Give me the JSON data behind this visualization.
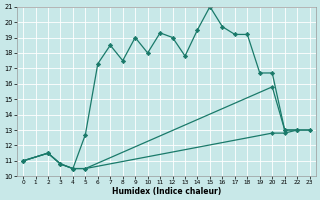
{
  "xlabel": "Humidex (Indice chaleur)",
  "bg_color": "#c8e8e8",
  "line_color": "#1a7a6a",
  "xlim": [
    -0.5,
    23.5
  ],
  "ylim": [
    10,
    21
  ],
  "xticks": [
    0,
    1,
    2,
    3,
    4,
    5,
    6,
    7,
    8,
    9,
    10,
    11,
    12,
    13,
    14,
    15,
    16,
    17,
    18,
    19,
    20,
    21,
    22,
    23
  ],
  "yticks": [
    10,
    11,
    12,
    13,
    14,
    15,
    16,
    17,
    18,
    19,
    20,
    21
  ],
  "line1_x": [
    0,
    2,
    3,
    4,
    5,
    6,
    7,
    8,
    9,
    10,
    11,
    12,
    13,
    14,
    15,
    16,
    17,
    18,
    19,
    20,
    21,
    22
  ],
  "line1_y": [
    11,
    11.5,
    10.8,
    10.5,
    12.7,
    17.3,
    18.5,
    17.5,
    19.0,
    18.0,
    19.3,
    19.0,
    17.8,
    19.5,
    21.0,
    19.7,
    19.2,
    19.2,
    16.7,
    16.7,
    13.0,
    13.0
  ],
  "line2_x": [
    0,
    2,
    3,
    4,
    5,
    20,
    21,
    22,
    23
  ],
  "line2_y": [
    11,
    11.5,
    10.8,
    10.5,
    10.5,
    15.8,
    13.0,
    13.0,
    13.0
  ],
  "line3_x": [
    0,
    2,
    3,
    4,
    5,
    20,
    21,
    22,
    23
  ],
  "line3_y": [
    11,
    11.5,
    10.8,
    10.5,
    10.5,
    12.8,
    12.8,
    13.0,
    13.0
  ]
}
